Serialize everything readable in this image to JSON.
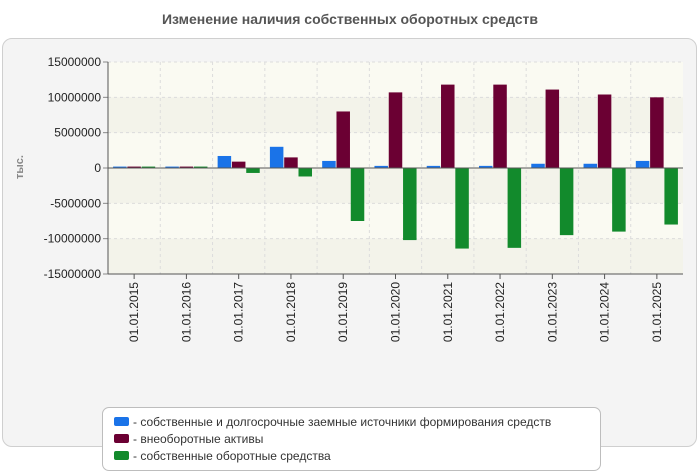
{
  "chart_data": {
    "type": "bar",
    "title": "Изменение наличия собственных оборотных средств",
    "ylabel": "тыс.",
    "xlabel": "",
    "ylim": [
      -15000000,
      15000000
    ],
    "yticks": [
      15000000,
      10000000,
      5000000,
      0,
      -5000000,
      -10000000,
      -15000000
    ],
    "ytick_labels": [
      "15000000",
      "10000000",
      "5000000",
      "0",
      "-5000000",
      "-10000000",
      "-15000000"
    ],
    "categories": [
      "01.01.2015",
      "01.01.2016",
      "01.01.2017",
      "01.01.2018",
      "01.01.2019",
      "01.01.2020",
      "01.01.2021",
      "01.01.2022",
      "01.01.2023",
      "01.01.2024",
      "01.01.2025"
    ],
    "series": [
      {
        "name": "- собственные и долгосрочные заемные источники формирования средств",
        "color": "#1a73e8",
        "values": [
          200000,
          200000,
          1700000,
          3000000,
          1000000,
          300000,
          300000,
          300000,
          600000,
          600000,
          1000000
        ]
      },
      {
        "name": "- внеоборотные активы",
        "color": "#6b0033",
        "values": [
          200000,
          200000,
          900000,
          1500000,
          8000000,
          10700000,
          11800000,
          11800000,
          11100000,
          10400000,
          10000000
        ]
      },
      {
        "name": "- собственные оборотные средства",
        "color": "#128a2c",
        "values": [
          200000,
          200000,
          -700000,
          -1200000,
          -7500000,
          -10200000,
          -11400000,
          -11300000,
          -9500000,
          -9000000,
          -8000000
        ]
      }
    ],
    "grid": true,
    "legend_position": "bottom"
  }
}
